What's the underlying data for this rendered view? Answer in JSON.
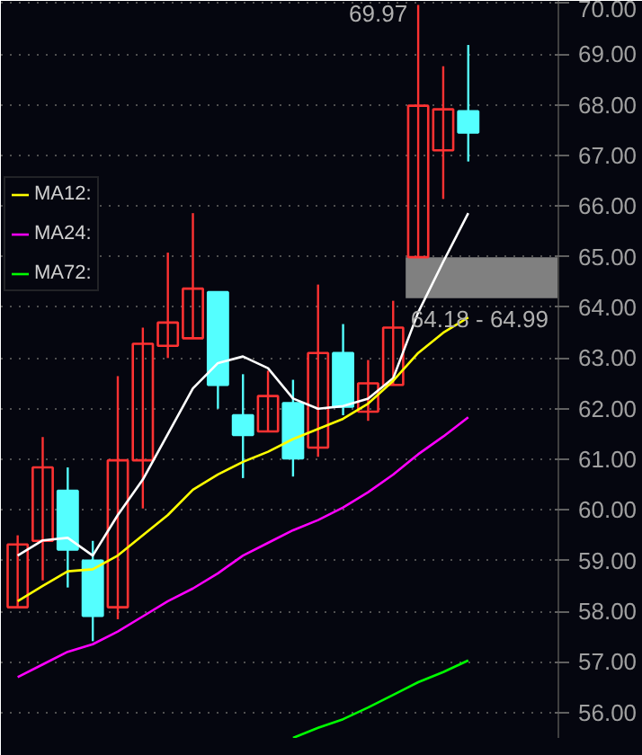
{
  "chart_data": {
    "type": "candlestick",
    "categories": [
      null,
      null,
      null,
      null,
      null,
      null,
      null,
      null,
      null,
      null,
      null,
      null,
      null,
      null,
      null,
      null,
      null,
      null,
      null
    ],
    "ohlc": [
      [
        58.08,
        59.5,
        58.08,
        59.32
      ],
      [
        59.39,
        61.44,
        58.61,
        60.84
      ],
      [
        60.38,
        60.84,
        58.47,
        59.22
      ],
      [
        59.0,
        59.39,
        57.41,
        57.91
      ],
      [
        58.08,
        62.64,
        57.84,
        60.98
      ],
      [
        60.98,
        63.6,
        60.03,
        63.28
      ],
      [
        63.24,
        65.08,
        63.0,
        63.7
      ],
      [
        63.39,
        65.86,
        63.39,
        64.37
      ],
      [
        64.3,
        64.3,
        62.0,
        62.47
      ],
      [
        61.87,
        62.68,
        60.63,
        61.48
      ],
      [
        61.55,
        62.75,
        61.55,
        62.25
      ],
      [
        62.11,
        62.57,
        60.66,
        61.02
      ],
      [
        61.23,
        64.45,
        61.05,
        63.1
      ],
      [
        63.1,
        63.67,
        61.87,
        62.04
      ],
      [
        61.94,
        62.96,
        61.76,
        62.5
      ],
      [
        62.47,
        64.13,
        62.47,
        63.6
      ],
      [
        64.99,
        69.97,
        64.99,
        67.98
      ],
      [
        67.1,
        68.76,
        66.14,
        67.91
      ],
      [
        67.87,
        69.18,
        66.88,
        67.45
      ]
    ],
    "colors": [
      "#ff3232",
      "#ff3232",
      "#54ffff",
      "#54ffff",
      "#ff3232",
      "#ff3232",
      "#ff3232",
      "#ff3232",
      "#54ffff",
      "#54ffff",
      "#ff3232",
      "#54ffff",
      "#ff3232",
      "#54ffff",
      "#ff3232",
      "#ff3232",
      "#ff3232",
      "#ff3232",
      "#54ffff"
    ],
    "series": [
      {
        "type": "line",
        "color": "#ffffff",
        "values": [
          59.1,
          59.4,
          59.45,
          59.1,
          59.9,
          60.6,
          61.5,
          62.4,
          62.9,
          63.03,
          62.8,
          62.2,
          62.0,
          62.05,
          62.2,
          62.6,
          63.9,
          64.9,
          65.86
        ]
      },
      {
        "type": "line",
        "name": "MA12:",
        "color": "#ffff00",
        "values": [
          58.2,
          58.5,
          58.79,
          58.83,
          59.1,
          59.5,
          59.9,
          60.4,
          60.7,
          60.95,
          61.15,
          61.4,
          61.6,
          61.8,
          62.1,
          62.55,
          63.1,
          63.5,
          63.8
        ]
      },
      {
        "type": "line",
        "name": "MA24:",
        "color": "#ff00ff",
        "values": [
          56.7,
          56.95,
          57.2,
          57.35,
          57.6,
          57.9,
          58.2,
          58.45,
          58.75,
          59.1,
          59.35,
          59.6,
          59.8,
          60.05,
          60.35,
          60.7,
          61.1,
          61.45,
          61.83
        ]
      },
      {
        "type": "line",
        "name": "MA72:",
        "color": "#00ff00",
        "values": [
          null,
          null,
          null,
          null,
          null,
          null,
          null,
          null,
          null,
          null,
          null,
          55.5,
          55.7,
          55.87,
          56.1,
          56.35,
          56.6,
          56.8,
          57.03
        ]
      }
    ],
    "ylim": [
      55.5,
      70.05
    ],
    "yticks": [
      {
        "value": 56,
        "label": "56.00"
      },
      {
        "value": 57,
        "label": "57.00"
      },
      {
        "value": 58,
        "label": "58.00"
      },
      {
        "value": 59,
        "label": "59.00"
      },
      {
        "value": 60,
        "label": "60.00"
      },
      {
        "value": 61,
        "label": "61.00"
      },
      {
        "value": 62,
        "label": "62.00"
      },
      {
        "value": 63,
        "label": "63.00"
      },
      {
        "value": 64,
        "label": "64.00"
      },
      {
        "value": 65,
        "label": "65.00"
      },
      {
        "value": 66,
        "label": "66.00"
      },
      {
        "value": 67,
        "label": "67.00"
      },
      {
        "value": 68,
        "label": "68.00"
      },
      {
        "value": 69,
        "label": "69.00"
      },
      {
        "value": 70,
        "label": "70.00"
      }
    ],
    "bands": [
      {
        "axis": "y",
        "from": 64.18,
        "to": 64.99,
        "label": "64.18 - 64.99",
        "color": "#808080"
      }
    ],
    "annotations": [
      "69.97"
    ],
    "grid": "y",
    "legend": "left",
    "line_style": "solid",
    "marker": "none"
  }
}
